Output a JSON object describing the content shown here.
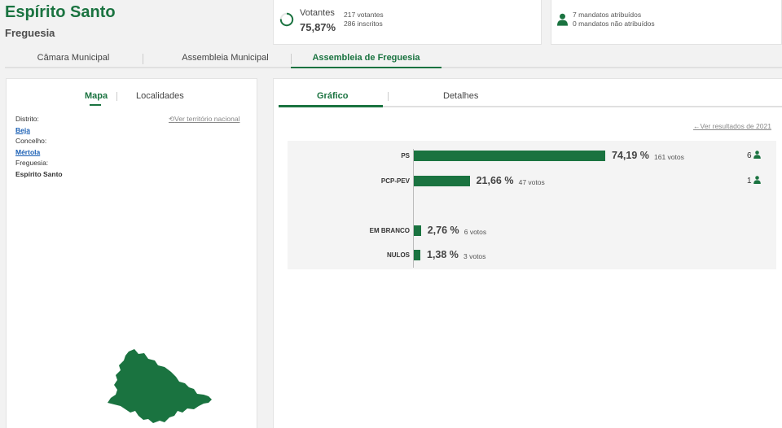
{
  "header": {
    "title": "Espírito Santo",
    "subtitle": "Freguesia"
  },
  "votes_card": {
    "label": "Votantes",
    "percent": "75,87%",
    "participation": 0.7587,
    "voters": "217 votantes",
    "registered": "286 inscritos"
  },
  "mandates_card": {
    "assigned": "7 mandatos atribuídos",
    "unassigned": "0 mandatos não atribuídos"
  },
  "top_tabs": [
    {
      "label": "Câmara Municipal"
    },
    {
      "label": "Assembleia Municipal"
    },
    {
      "label": "Assembleia de Freguesia",
      "active": true
    }
  ],
  "left_panel": {
    "tabs": [
      {
        "label": "Mapa",
        "active": true
      },
      {
        "label": "Localidades"
      }
    ],
    "territory_link": "Ver território nacional",
    "info": {
      "distrito_label": "Distrito:",
      "distrito": "Beja",
      "concelho_label": "Concelho:",
      "concelho": "Mértola",
      "freguesia_label": "Freguesia:",
      "freguesia": "Espírito Santo"
    },
    "map_color": "#1a7340"
  },
  "right_panel": {
    "tabs": [
      {
        "label": "Gráfico",
        "active": true
      },
      {
        "label": "Detalhes"
      }
    ],
    "previous_results_link": "Ver resultados de 2021"
  },
  "chart_data": {
    "type": "bar",
    "orientation": "horizontal",
    "rows": [
      {
        "name": "PS",
        "percent": 74.19,
        "percent_label": "74,19 %",
        "votes_label": "161 votos",
        "mandates": "6"
      },
      {
        "name": "PCP-PEV",
        "percent": 21.66,
        "percent_label": "21,66 %",
        "votes_label": "47 votos",
        "mandates": "1"
      },
      {
        "name": "EM BRANCO",
        "percent": 2.76,
        "percent_label": "2,76 %",
        "votes_label": "6 votos"
      },
      {
        "name": "NULOS",
        "percent": 1.38,
        "percent_label": "1,38 %",
        "votes_label": "3 votos"
      }
    ],
    "bar_color": "#1a7340"
  },
  "colors": {
    "accent": "#1a7340",
    "link": "#1a5fb4"
  }
}
